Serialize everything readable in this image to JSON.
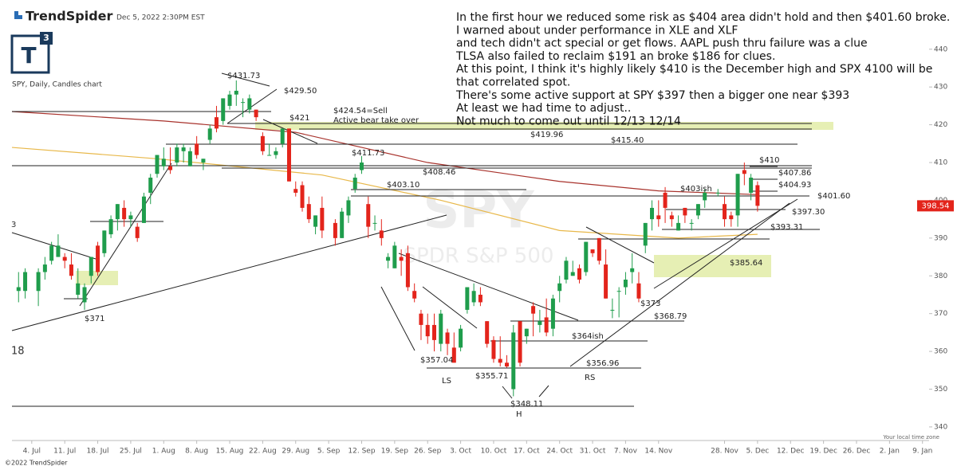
{
  "header": {
    "brand": "TrendSpider",
    "timestamp": "Dec 5, 2022 2:30PM EST",
    "chart_label": "SPY, Daily, Candles chart"
  },
  "note": [
    "In the first hour we reduced some risk as $404 area didn't hold and then $401.60 broke.",
    "I warned about under performance in XLE and XLF",
    "and tech didn't act special or get flows. AAPL push thru failure was a clue",
    "TLSA also failed to reclaim $191 an broke $186 for clues.",
    "At this point, I think it's highly likely $410 is the December high and SPX 4100 will be",
    "that correlated spot.",
    "There's some active support at SPY $397 then a bigger one near $393",
    "At least we had time to adjust..",
    "Not much to come out until 12/13 12/14"
  ],
  "footer": "©2022 TrendSpider",
  "chart_data": {
    "type": "candlestick",
    "x": [
      -2,
      -1,
      1,
      2,
      3,
      4,
      5,
      6,
      7,
      8,
      9,
      10,
      11,
      12,
      13,
      14,
      15,
      16,
      17,
      18,
      19,
      20,
      21,
      22,
      23,
      24,
      25,
      26,
      27,
      28,
      29,
      30,
      31,
      32,
      33,
      34,
      35,
      36,
      37,
      38,
      39,
      40,
      41,
      42,
      43,
      44,
      46,
      47,
      48,
      49,
      50,
      51,
      52,
      53,
      54,
      55,
      56,
      57,
      58,
      59,
      60,
      61,
      62,
      63,
      64,
      65,
      66,
      67,
      68,
      69,
      70,
      71,
      72,
      73,
      74,
      75,
      76,
      77,
      78,
      79,
      80,
      81,
      82,
      83,
      84,
      85,
      86,
      87,
      88,
      89,
      90,
      91,
      92,
      93,
      94,
      95,
      96,
      97,
      98,
      99,
      100,
      101,
      102,
      104,
      105,
      106,
      107,
      108,
      109,
      110
    ],
    "open": [
      376,
      376,
      376,
      381,
      384,
      385,
      385,
      383,
      375,
      373,
      380,
      388,
      386,
      391,
      395,
      398,
      395,
      393,
      394,
      402,
      407,
      409,
      409,
      410,
      413,
      409,
      415,
      410,
      416,
      422,
      421,
      425,
      428,
      426,
      424,
      424,
      417,
      412,
      412,
      415,
      419,
      403,
      404,
      399,
      393,
      398,
      394,
      390,
      396,
      403,
      408,
      399,
      394,
      392,
      384,
      382,
      385,
      386,
      376,
      370,
      367,
      367,
      362,
      365,
      361,
      361,
      371,
      373,
      375,
      368,
      363,
      358,
      357,
      350,
      368,
      364,
      372,
      367,
      369,
      366,
      376,
      379,
      380,
      382,
      381,
      387,
      390,
      383,
      371,
      376,
      377,
      381,
      378,
      388,
      395,
      396,
      402,
      396,
      392,
      398,
      394,
      396,
      400,
      402,
      399,
      396,
      396,
      408,
      402,
      404
    ],
    "high": [
      381,
      382,
      382,
      385,
      389,
      391,
      386,
      386,
      382,
      378,
      385,
      389,
      392,
      396,
      399,
      400,
      397,
      394,
      402,
      407,
      412,
      414,
      414,
      415,
      415,
      414,
      417,
      411,
      420,
      425,
      427,
      429,
      431.73,
      427,
      428,
      424,
      418,
      415,
      414,
      419,
      419,
      405,
      405,
      401,
      396,
      401,
      395,
      398,
      401,
      407,
      411.73,
      401,
      396,
      395,
      386,
      389,
      387,
      388,
      378,
      371,
      370,
      370,
      371,
      366,
      365,
      367,
      377,
      378,
      377,
      368,
      364,
      364,
      359,
      367,
      368,
      366,
      373,
      371,
      374,
      375,
      380,
      385,
      384,
      383,
      389,
      387,
      390,
      387,
      374,
      377,
      381,
      386,
      381,
      394,
      400,
      400,
      403.5,
      397,
      396,
      398,
      395,
      399,
      403,
      403,
      401,
      397,
      407,
      410,
      407,
      405
    ],
    "low": [
      373,
      374,
      372,
      379,
      383,
      385,
      382,
      379,
      374,
      371,
      378,
      380,
      385,
      390,
      392,
      393,
      393,
      389,
      394,
      399,
      406,
      408,
      407,
      409,
      410,
      409,
      411,
      408,
      415,
      418,
      420,
      424,
      425,
      422,
      423,
      421,
      412,
      412,
      411,
      414,
      405,
      401,
      397,
      394,
      391,
      390,
      388,
      390,
      394,
      402,
      407,
      390,
      392,
      388,
      382,
      382,
      380,
      376,
      373,
      363,
      362,
      360,
      360,
      359,
      357.04,
      360,
      370,
      372,
      372,
      361,
      357,
      356,
      355.71,
      348.11,
      356,
      362,
      364,
      365,
      364,
      364,
      373,
      378,
      380,
      378,
      380,
      385,
      383,
      374,
      368.79,
      369,
      375,
      378,
      373,
      386,
      392,
      393,
      394,
      393,
      392,
      394,
      392,
      395,
      398,
      401,
      393,
      393,
      393,
      404,
      400,
      397
    ],
    "close": [
      377,
      381,
      381,
      383,
      388,
      388,
      384,
      380,
      378,
      377,
      385,
      381,
      392,
      395,
      399,
      395,
      396,
      390,
      401,
      406,
      412,
      411,
      408,
      414,
      414,
      413,
      412,
      411,
      419,
      419,
      427,
      428,
      429,
      426,
      427,
      422,
      413,
      412,
      413,
      419,
      405,
      402,
      398,
      395,
      396,
      392,
      390,
      397,
      400,
      406,
      410,
      393,
      394,
      390,
      385,
      388,
      384,
      377,
      374,
      367,
      364,
      363,
      370,
      362,
      357,
      366,
      377,
      376,
      373,
      362,
      358,
      357,
      356,
      365,
      357,
      366,
      370,
      368,
      365,
      374,
      378,
      384,
      381,
      379,
      389,
      386,
      384,
      374,
      371,
      376,
      379,
      382,
      374,
      394,
      398,
      395,
      398,
      395,
      394,
      396,
      394,
      399,
      402,
      402,
      395,
      395,
      407,
      407,
      406,
      398.54
    ],
    "up_color": "#1f9d4c",
    "down_color": "#e3241b",
    "xlim": [
      -3,
      136
    ],
    "ylim": [
      336.4,
      450.5
    ],
    "xticks": [
      {
        "value": 0,
        "label": "4. Jul"
      },
      {
        "value": 5,
        "label": "11. Jul"
      },
      {
        "value": 10,
        "label": "18. Jul"
      },
      {
        "value": 15,
        "label": "25. Jul"
      },
      {
        "value": 20,
        "label": "1. Aug"
      },
      {
        "value": 25,
        "label": "8. Aug"
      },
      {
        "value": 30,
        "label": "15. Aug"
      },
      {
        "value": 35,
        "label": "22. Aug"
      },
      {
        "value": 40,
        "label": "29. Aug"
      },
      {
        "value": 45,
        "label": "5. Sep"
      },
      {
        "value": 50,
        "label": "12. Sep"
      },
      {
        "value": 55,
        "label": "19. Sep"
      },
      {
        "value": 60,
        "label": "26. Sep"
      },
      {
        "value": 65,
        "label": "3. Oct"
      },
      {
        "value": 70,
        "label": "10. Oct"
      },
      {
        "value": 75,
        "label": "17. Oct"
      },
      {
        "value": 80,
        "label": "24. Oct"
      },
      {
        "value": 85,
        "label": "31. Oct"
      },
      {
        "value": 90,
        "label": "7. Nov"
      },
      {
        "value": 95,
        "label": "14. Nov"
      },
      {
        "value": 105,
        "label": "28. Nov"
      },
      {
        "value": 110,
        "label": "5. Dec"
      },
      {
        "value": 115,
        "label": "12. Dec"
      },
      {
        "value": 120,
        "label": "19. Dec"
      },
      {
        "value": 125,
        "label": "26. Dec"
      },
      {
        "value": 130,
        "label": "2. Jan"
      },
      {
        "value": 135,
        "label": "9. Jan"
      }
    ],
    "yticks": [
      340,
      350,
      360,
      370,
      380,
      390,
      400,
      410,
      420,
      430,
      440
    ],
    "overlays": [
      {
        "color": "#a8322c",
        "x": [
          -3,
          20,
          40,
          60,
          80,
          95,
          110
        ],
        "values": [
          423.5,
          421,
          418,
          410,
          405,
          402.5,
          401.5
        ]
      },
      {
        "color": "#e8b84a",
        "x": [
          -3,
          19,
          44,
          62,
          80,
          98,
          110
        ],
        "values": [
          414,
          411,
          406.7,
          400,
          392,
          390,
          391
        ]
      }
    ],
    "watermark": [
      "SPY",
      "SPDR S&P 500"
    ],
    "edge_labels": [
      "3",
      "18"
    ],
    "timezone_note": "Your local time zone",
    "annotations": [
      "$431.73",
      "$429.50",
      "$424.54=Sell",
      "Active bear take over",
      "$421",
      "$419.96",
      "$415.40",
      "$411.73",
      "$408.46",
      "$403.10",
      "$410",
      "$407.86",
      "$404.93",
      "$403ish",
      "$401.60",
      "$397.30",
      "$393.31",
      "$385.64",
      "$373",
      "$368.79",
      "$364ish",
      "$356.96",
      "$357.04",
      "$355.71",
      "$348.11",
      "$371",
      "LS",
      "RS",
      "H"
    ]
  }
}
